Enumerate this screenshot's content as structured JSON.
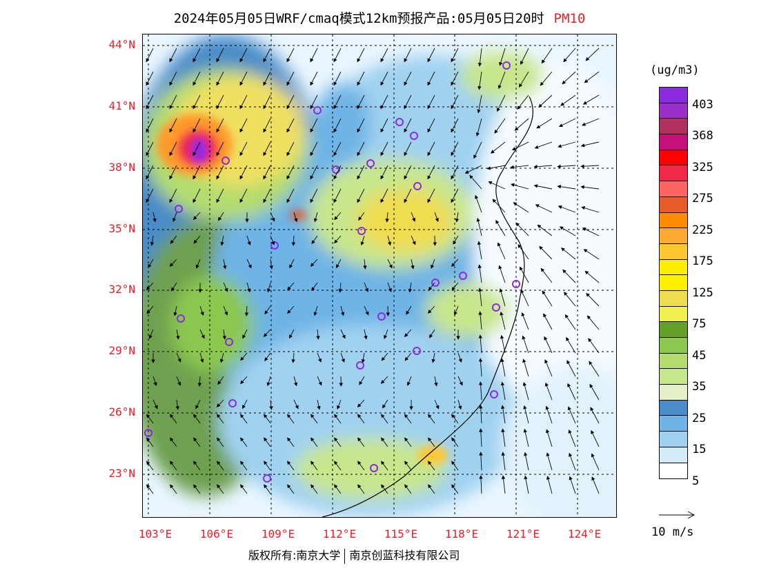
{
  "header": {
    "title": "2024年05月05日WRF/cmaq模式12km预报产品:05月05日20时",
    "pollutant": "PM10"
  },
  "map": {
    "lat_labels": [
      "44°N",
      "41°N",
      "38°N",
      "35°N",
      "32°N",
      "29°N",
      "26°N",
      "23°N"
    ],
    "lon_labels": [
      "103°E",
      "106°E",
      "109°E",
      "112°E",
      "115°E",
      "118°E",
      "121°E",
      "124°E"
    ]
  },
  "legend": {
    "units": "(ug/m3)",
    "colors": [
      "#8a2be2",
      "#9b30c8",
      "#b03060",
      "#c8107a",
      "#ff0000",
      "#f0284a",
      "#ff6464",
      "#e85a28",
      "#ff8c00",
      "#ffaa30",
      "#ffc830",
      "#ffee00",
      "#fff000",
      "#f0dc50",
      "#f0f050",
      "#64a028",
      "#8cc850",
      "#b4dc6e",
      "#c8e68c",
      "#e6f0c8",
      "#4a8cc8",
      "#6eb4e6",
      "#a0d2f0",
      "#d2ecfa",
      "#ffffff"
    ],
    "labels": [
      "403",
      "368",
      "325",
      "275",
      "225",
      "175",
      "125",
      "75",
      "45",
      "35",
      "25",
      "15",
      "5"
    ]
  },
  "vector_ref": {
    "label": "10 m/s"
  },
  "footer": {
    "left": "版权所有:南京大学",
    "right": "南京创蓝科技有限公司"
  }
}
